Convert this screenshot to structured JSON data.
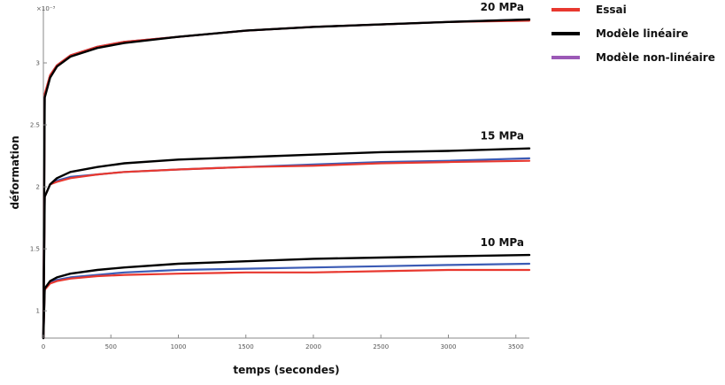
{
  "chart_data": {
    "type": "line",
    "xlabel": "temps (secondes)",
    "ylabel": "déformation",
    "exponent_label": "×10⁻³",
    "xlim": [
      0,
      3600
    ],
    "ylim": [
      0.78,
      3.45
    ],
    "xticks": [
      0,
      500,
      1000,
      1500,
      2000,
      2500,
      3000,
      3500
    ],
    "yticks": [
      {
        "value": 1,
        "label": "1"
      },
      {
        "value": 1.5,
        "label": "1.5"
      },
      {
        "value": 2,
        "label": "2"
      },
      {
        "value": 2.5,
        "label": "2.5"
      },
      {
        "value": 3,
        "label": "3"
      }
    ],
    "grid": false,
    "legend_position": "top-right, outside plot",
    "legend": [
      {
        "key": "essai",
        "label": "Essai",
        "color": "#e8382f"
      },
      {
        "key": "lin",
        "label": "Modèle linéaire",
        "color": "#000000"
      },
      {
        "key": "nonlin",
        "label": "Modèle non-linéaire",
        "color": "#9b59b6"
      }
    ],
    "groups": [
      {
        "label": "20 MPa",
        "series": [
          {
            "key": "lin",
            "x": [
              0,
              10,
              50,
              100,
              200,
              400,
              600,
              1000,
              1500,
              2000,
              2500,
              3000,
              3600
            ],
            "y": [
              0,
              2.72,
              2.88,
              2.97,
              3.05,
              3.12,
              3.16,
              3.21,
              3.26,
              3.29,
              3.31,
              3.33,
              3.35
            ]
          },
          {
            "key": "nonlin",
            "x": [
              0,
              10,
              50,
              100,
              200,
              400,
              600,
              1000,
              1500,
              2000,
              2500,
              3000,
              3600
            ],
            "y": [
              0,
              2.74,
              2.9,
              2.98,
              3.06,
              3.13,
              3.17,
              3.21,
              3.26,
              3.29,
              3.31,
              3.33,
              3.35
            ]
          },
          {
            "key": "essai",
            "x": [
              0,
              10,
              50,
              100,
              200,
              400,
              600,
              1000,
              1500,
              2000,
              2500,
              3000,
              3600
            ],
            "y": [
              0,
              2.75,
              2.9,
              2.98,
              3.06,
              3.13,
              3.17,
              3.21,
              3.26,
              3.29,
              3.31,
              3.33,
              3.34
            ]
          }
        ]
      },
      {
        "label": "15 MPa",
        "series": [
          {
            "key": "lin",
            "x": [
              0,
              10,
              50,
              100,
              200,
              400,
              600,
              1000,
              1500,
              2000,
              2500,
              3000,
              3600
            ],
            "y": [
              0,
              1.92,
              2.02,
              2.07,
              2.12,
              2.16,
              2.19,
              2.22,
              2.24,
              2.26,
              2.28,
              2.29,
              2.31
            ]
          },
          {
            "key": "nonlin",
            "x": [
              0,
              10,
              50,
              100,
              200,
              400,
              600,
              1000,
              1500,
              2000,
              2500,
              3000,
              3600
            ],
            "y": [
              0,
              1.92,
              2.02,
              2.05,
              2.08,
              2.1,
              2.12,
              2.14,
              2.16,
              2.18,
              2.2,
              2.21,
              2.23
            ]
          },
          {
            "key": "essai",
            "x": [
              0,
              10,
              50,
              100,
              200,
              400,
              600,
              1000,
              1500,
              2000,
              2500,
              3000,
              3600
            ],
            "y": [
              0,
              1.92,
              2.02,
              2.04,
              2.07,
              2.1,
              2.12,
              2.14,
              2.16,
              2.17,
              2.19,
              2.2,
              2.21
            ]
          }
        ]
      },
      {
        "label": "10 MPa",
        "series": [
          {
            "key": "lin",
            "x": [
              0,
              10,
              50,
              100,
              200,
              400,
              600,
              1000,
              1500,
              2000,
              2500,
              3000,
              3600
            ],
            "y": [
              0,
              1.18,
              1.24,
              1.27,
              1.3,
              1.33,
              1.35,
              1.38,
              1.4,
              1.42,
              1.43,
              1.44,
              1.45
            ]
          },
          {
            "key": "nonlin",
            "x": [
              0,
              10,
              50,
              100,
              200,
              400,
              600,
              1000,
              1500,
              2000,
              2500,
              3000,
              3600
            ],
            "y": [
              0,
              1.18,
              1.23,
              1.25,
              1.27,
              1.29,
              1.31,
              1.33,
              1.34,
              1.35,
              1.36,
              1.37,
              1.38
            ]
          },
          {
            "key": "essai",
            "x": [
              0,
              10,
              50,
              100,
              200,
              400,
              600,
              1000,
              1500,
              2000,
              2500,
              3000,
              3600
            ],
            "y": [
              0,
              1.17,
              1.22,
              1.24,
              1.26,
              1.28,
              1.29,
              1.3,
              1.31,
              1.31,
              1.32,
              1.33,
              1.33
            ]
          }
        ]
      }
    ]
  }
}
